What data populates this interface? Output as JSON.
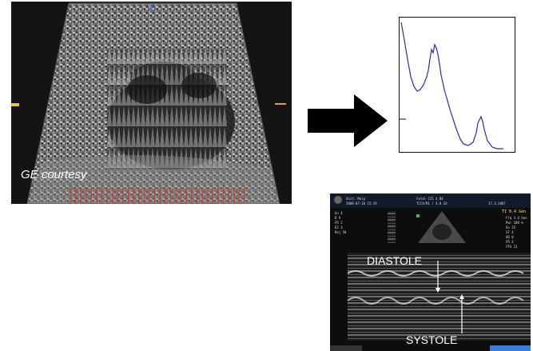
{
  "ultrasound_panel": {
    "courtesy_label": "GE courtesy"
  },
  "mmode_panel": {
    "diastole_label": "DIASTOLE",
    "systole_label": "SYSTOLE",
    "header": {
      "name": "Unit: Melp",
      "date": "2008-07-18 15:19",
      "inst": "Fetal CIS 4 B4",
      "inst2": "TCC4/M1 / 4.0 Zd",
      "time": "17.3.2007",
      "ti": "TI 0.4 Gen"
    },
    "left_params": [
      "Gn 4",
      "D 9",
      "FR 2",
      "E2 3",
      "Rej 50"
    ],
    "right_params": [
      "Frq 3.4 Gen",
      "Pwr 100 %",
      "Gn 35",
      "ST 4",
      "AO 0",
      "FR 4",
      "FPS 21"
    ]
  },
  "colors": {
    "arrow": "#000000",
    "plot_line": "#2b2bb5",
    "marker_red": "#d23a2a",
    "dark_bg": "#1a1a1a"
  }
}
